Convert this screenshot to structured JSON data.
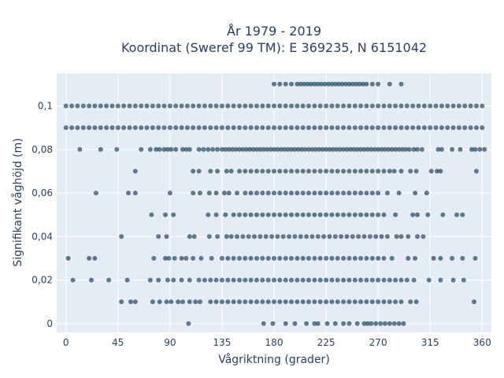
{
  "chart_data": {
    "type": "scatter",
    "title_line1": "År 1979 - 2019",
    "title_line2": "Koordinat (Sweref 99 TM): E 369235, N 6151042",
    "xlabel": "Vågriktning (grader)",
    "ylabel": "Signifikant våghöjd (m)",
    "xlim": [
      -8,
      368
    ],
    "ylim": [
      -0.004,
      0.115
    ],
    "xticks": [
      0,
      45,
      90,
      135,
      180,
      225,
      270,
      315,
      360
    ],
    "xtick_labels": [
      "0",
      "45",
      "90",
      "135",
      "180",
      "225",
      "270",
      "315",
      "360"
    ],
    "yticks": [
      0,
      0.02,
      0.04,
      0.06,
      0.08,
      0.1
    ],
    "ytick_labels": [
      "0",
      "0,02",
      "0,04",
      "0,06",
      "0,08",
      "0,1"
    ],
    "grid": true,
    "colors": {
      "plot_background": "#e5ecf6",
      "grid": "#ffffff",
      "marker": "#2f5168"
    },
    "series": [
      {
        "y": 0.11,
        "x": [
          180,
          185,
          190,
          195,
          200,
          203,
          206,
          209,
          212,
          215,
          218,
          221,
          224,
          227,
          230,
          233,
          236,
          239,
          242,
          245,
          248,
          251,
          254,
          257,
          260,
          265,
          270,
          280,
          290
        ]
      },
      {
        "y": 0.1,
        "x": [
          0,
          5,
          10,
          15,
          20,
          25,
          30,
          35,
          40,
          45,
          50,
          55,
          60,
          65,
          70,
          75,
          80,
          85,
          90,
          95,
          100,
          105,
          110,
          115,
          120,
          125,
          130,
          135,
          140,
          145,
          150,
          155,
          160,
          165,
          170,
          175,
          180,
          185,
          190,
          195,
          200,
          205,
          210,
          215,
          220,
          225,
          230,
          235,
          240,
          245,
          250,
          255,
          260,
          265,
          270,
          275,
          280,
          285,
          290,
          295,
          300,
          305,
          310,
          315,
          320,
          325,
          330,
          335,
          340,
          345,
          350,
          355,
          360
        ]
      },
      {
        "y": 0.09,
        "x": [
          0,
          5,
          10,
          15,
          20,
          25,
          30,
          35,
          40,
          45,
          50,
          55,
          60,
          65,
          70,
          75,
          80,
          85,
          90,
          95,
          100,
          105,
          110,
          115,
          120,
          125,
          130,
          135,
          140,
          145,
          150,
          155,
          160,
          165,
          170,
          175,
          180,
          185,
          190,
          195,
          200,
          205,
          210,
          215,
          220,
          225,
          230,
          235,
          240,
          245,
          250,
          255,
          260,
          265,
          270,
          275,
          280,
          285,
          290,
          295,
          300,
          305,
          310,
          315,
          320,
          325,
          330,
          335,
          340,
          345,
          350,
          355,
          360
        ]
      },
      {
        "y": 0.08,
        "x": [
          12,
          30,
          44,
          65,
          73,
          78,
          81,
          85,
          88,
          91,
          95,
          101,
          104,
          107,
          115,
          119,
          123,
          127,
          131,
          135,
          138,
          141,
          144,
          147,
          150,
          153,
          156,
          159,
          162,
          165,
          168,
          171,
          174,
          177,
          180,
          183,
          186,
          189,
          192,
          195,
          198,
          201,
          204,
          207,
          210,
          213,
          216,
          219,
          222,
          225,
          228,
          231,
          234,
          237,
          240,
          243,
          246,
          249,
          252,
          255,
          258,
          261,
          264,
          267,
          270,
          273,
          276,
          279,
          282,
          285,
          288,
          291,
          294,
          297,
          301,
          304,
          308,
          322,
          325,
          334,
          341,
          351,
          354,
          358,
          362
        ]
      },
      {
        "y": 0.07,
        "x": [
          60,
          110,
          115,
          125,
          131,
          139,
          143,
          150,
          155,
          160,
          165,
          170,
          175,
          180,
          185,
          190,
          195,
          200,
          205,
          210,
          215,
          220,
          225,
          230,
          235,
          240,
          245,
          250,
          255,
          260,
          265,
          270,
          275,
          280,
          284,
          290,
          298,
          303,
          316,
          321,
          324,
          355
        ]
      },
      {
        "y": 0.06,
        "x": [
          26,
          54,
          60,
          90,
          110,
          116,
          124,
          130,
          137,
          141,
          148,
          155,
          160,
          165,
          170,
          175,
          180,
          185,
          190,
          195,
          200,
          205,
          210,
          215,
          220,
          225,
          230,
          235,
          240,
          245,
          250,
          255,
          260,
          265,
          270,
          278,
          288,
          302,
          312
        ]
      },
      {
        "y": 0.05,
        "x": [
          74,
          86,
          93,
          123,
          130,
          138,
          145,
          150,
          155,
          160,
          165,
          170,
          175,
          180,
          185,
          190,
          195,
          200,
          205,
          210,
          215,
          220,
          225,
          230,
          235,
          240,
          245,
          250,
          255,
          260,
          265,
          270,
          275,
          285,
          300,
          304,
          313,
          326,
          338,
          343
        ]
      },
      {
        "y": 0.04,
        "x": [
          48,
          80,
          87,
          107,
          111,
          124,
          131,
          139,
          143,
          148,
          153,
          158,
          163,
          168,
          173,
          178,
          183,
          188,
          193,
          198,
          203,
          208,
          213,
          218,
          223,
          228,
          233,
          238,
          243,
          248,
          253,
          258,
          263,
          268,
          273,
          278,
          286,
          290,
          296,
          304,
          309
        ]
      },
      {
        "y": 0.03,
        "x": [
          2,
          20,
          25,
          76,
          86,
          89,
          94,
          100,
          104,
          110,
          117,
          126,
          135,
          140,
          145,
          150,
          155,
          160,
          165,
          170,
          175,
          180,
          185,
          190,
          195,
          200,
          205,
          210,
          215,
          220,
          225,
          230,
          235,
          240,
          245,
          250,
          255,
          260,
          265,
          270,
          275,
          282,
          296,
          302,
          318,
          324,
          334,
          343,
          354
        ]
      },
      {
        "y": 0.02,
        "x": [
          6,
          22,
          37,
          53,
          73,
          80,
          88,
          93,
          100,
          107,
          115,
          120,
          125,
          130,
          135,
          140,
          145,
          150,
          155,
          160,
          165,
          170,
          175,
          180,
          185,
          190,
          195,
          200,
          205,
          210,
          215,
          220,
          225,
          230,
          235,
          240,
          245,
          250,
          255,
          260,
          265,
          270,
          275,
          280,
          285,
          290,
          295,
          301,
          314,
          324,
          335,
          344
        ]
      },
      {
        "y": 0.01,
        "x": [
          48,
          56,
          60,
          75,
          81,
          87,
          91,
          97,
          101,
          107,
          112,
          116,
          125,
          130,
          135,
          140,
          145,
          150,
          155,
          160,
          165,
          170,
          175,
          180,
          185,
          190,
          195,
          200,
          205,
          210,
          215,
          220,
          225,
          230,
          235,
          240,
          245,
          250,
          255,
          260,
          265,
          270,
          275,
          280,
          285,
          290,
          298,
          303,
          353
        ]
      },
      {
        "y": 0,
        "x": [
          106,
          171,
          179,
          190,
          198,
          208,
          215,
          218,
          226,
          233,
          240,
          245,
          252,
          258,
          261,
          264,
          268,
          272,
          276,
          280,
          284,
          288,
          292
        ]
      }
    ]
  }
}
